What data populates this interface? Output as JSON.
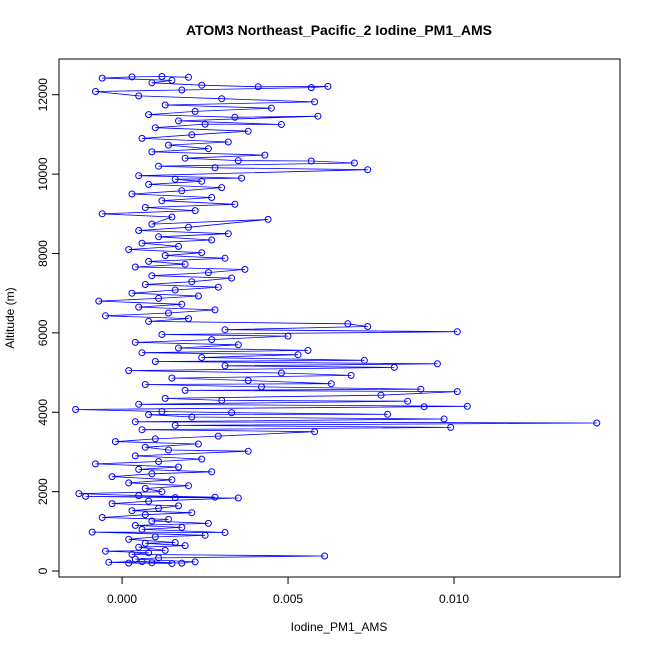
{
  "chart_data": {
    "type": "scatter",
    "title": "ATOM3 Northeast_Pacific_2 Iodine_PM1_AMS",
    "xlabel": "Iodine_PM1_AMS",
    "ylabel": "Altitude (m)",
    "xlim": [
      -0.0019,
      0.015
    ],
    "ylim": [
      -150,
      12900
    ],
    "xticks": [
      {
        "value": 0.0,
        "label": "0.000"
      },
      {
        "value": 0.005,
        "label": "0.005"
      },
      {
        "value": 0.01,
        "label": "0.010"
      }
    ],
    "yticks": [
      {
        "value": 0,
        "label": "0"
      },
      {
        "value": 2000,
        "label": "2000"
      },
      {
        "value": 4000,
        "label": "4000"
      },
      {
        "value": 6000,
        "label": "6000"
      },
      {
        "value": 8000,
        "label": "8000"
      },
      {
        "value": 10000,
        "label": "10000"
      },
      {
        "value": 12000,
        "label": "12000"
      }
    ],
    "series": [
      {
        "color": "#0000ff",
        "style": "points-and-lines",
        "marker": "open-circle",
        "points": [
          [
            0.0002,
            200
          ],
          [
            0.0009,
            210
          ],
          [
            0.0015,
            190
          ],
          [
            -0.0004,
            220
          ],
          [
            0.0006,
            240
          ],
          [
            0.0018,
            200
          ],
          [
            0.0022,
            230
          ],
          [
            0.0004,
            300
          ],
          [
            0.0011,
            330
          ],
          [
            0.0061,
            380
          ],
          [
            0.0003,
            420
          ],
          [
            0.0008,
            460
          ],
          [
            -0.0005,
            500
          ],
          [
            0.0013,
            520
          ],
          [
            0.0005,
            600
          ],
          [
            0.0019,
            640
          ],
          [
            0.0007,
            700
          ],
          [
            0.0016,
            720
          ],
          [
            0.0002,
            800
          ],
          [
            0.001,
            860
          ],
          [
            0.0025,
            900
          ],
          [
            -0.0009,
            980
          ],
          [
            0.0031,
            970
          ],
          [
            0.0006,
            1050
          ],
          [
            0.0018,
            1100
          ],
          [
            0.0004,
            1150
          ],
          [
            0.0026,
            1200
          ],
          [
            0.0009,
            1260
          ],
          [
            0.0014,
            1300
          ],
          [
            -0.0006,
            1350
          ],
          [
            0.0007,
            1420
          ],
          [
            0.0021,
            1470
          ],
          [
            0.0003,
            1520
          ],
          [
            0.0011,
            1580
          ],
          [
            0.0017,
            1640
          ],
          [
            -0.0003,
            1700
          ],
          [
            0.0008,
            1760
          ],
          [
            0.0035,
            1840
          ],
          [
            0.0016,
            1850
          ],
          [
            -0.0011,
            1880
          ],
          [
            0.0028,
            1860
          ],
          [
            0.0005,
            1900
          ],
          [
            -0.0013,
            1950
          ],
          [
            0.0012,
            2000
          ],
          [
            0.0007,
            2080
          ],
          [
            0.002,
            2150
          ],
          [
            0.0002,
            2220
          ],
          [
            0.0015,
            2300
          ],
          [
            -0.0003,
            2380
          ],
          [
            0.0009,
            2450
          ],
          [
            0.0027,
            2500
          ],
          [
            0.0005,
            2560
          ],
          [
            0.0017,
            2620
          ],
          [
            -0.0008,
            2700
          ],
          [
            0.0011,
            2760
          ],
          [
            0.0024,
            2820
          ],
          [
            0.0004,
            2900
          ],
          [
            0.0038,
            3020
          ],
          [
            0.0014,
            3050
          ],
          [
            0.0007,
            3120
          ],
          [
            0.0023,
            3200
          ],
          [
            -0.0002,
            3260
          ],
          [
            0.001,
            3330
          ],
          [
            0.0029,
            3400
          ],
          [
            0.0058,
            3510
          ],
          [
            0.0006,
            3560
          ],
          [
            0.0099,
            3620
          ],
          [
            0.0016,
            3670
          ],
          [
            0.0143,
            3730
          ],
          [
            0.0004,
            3760
          ],
          [
            0.0097,
            3830
          ],
          [
            0.0021,
            3880
          ],
          [
            0.0008,
            3940
          ],
          [
            0.008,
            3950
          ],
          [
            0.0033,
            3990
          ],
          [
            0.0012,
            4020
          ],
          [
            -0.0014,
            4070
          ],
          [
            0.0091,
            4140
          ],
          [
            0.0104,
            4150
          ],
          [
            0.0005,
            4200
          ],
          [
            0.0086,
            4280
          ],
          [
            0.003,
            4300
          ],
          [
            0.0013,
            4350
          ],
          [
            0.0078,
            4430
          ],
          [
            0.0101,
            4520
          ],
          [
            0.0019,
            4550
          ],
          [
            0.009,
            4580
          ],
          [
            0.0042,
            4640
          ],
          [
            0.0007,
            4700
          ],
          [
            0.0063,
            4720
          ],
          [
            0.0038,
            4800
          ],
          [
            0.0015,
            4860
          ],
          [
            0.0069,
            4930
          ],
          [
            0.0048,
            4990
          ],
          [
            0.0002,
            5050
          ],
          [
            0.0082,
            5130
          ],
          [
            0.0031,
            5170
          ],
          [
            0.0095,
            5220
          ],
          [
            0.001,
            5280
          ],
          [
            0.0073,
            5310
          ],
          [
            0.0024,
            5380
          ],
          [
            0.0053,
            5450
          ],
          [
            0.0006,
            5500
          ],
          [
            0.0056,
            5560
          ],
          [
            0.0017,
            5620
          ],
          [
            0.0035,
            5700
          ],
          [
            0.0004,
            5760
          ],
          [
            0.0027,
            5830
          ],
          [
            0.005,
            5920
          ],
          [
            0.0012,
            5960
          ],
          [
            0.0101,
            6030
          ],
          [
            0.0031,
            6080
          ],
          [
            0.0074,
            6160
          ],
          [
            0.0068,
            6230
          ],
          [
            0.0008,
            6290
          ],
          [
            0.002,
            6360
          ],
          [
            -0.0005,
            6430
          ],
          [
            0.0014,
            6500
          ],
          [
            0.0028,
            6580
          ],
          [
            0.0005,
            6650
          ],
          [
            0.0018,
            6720
          ],
          [
            -0.0007,
            6800
          ],
          [
            0.0011,
            6870
          ],
          [
            0.0023,
            6930
          ],
          [
            0.0003,
            7000
          ],
          [
            0.0016,
            7080
          ],
          [
            0.0029,
            7150
          ],
          [
            0.0007,
            7220
          ],
          [
            0.0021,
            7290
          ],
          [
            0.0033,
            7380
          ],
          [
            0.0009,
            7440
          ],
          [
            0.0026,
            7520
          ],
          [
            0.0037,
            7600
          ],
          [
            0.0004,
            7660
          ],
          [
            0.0019,
            7730
          ],
          [
            0.0008,
            7800
          ],
          [
            0.0031,
            7880
          ],
          [
            0.0013,
            7950
          ],
          [
            0.0024,
            8020
          ],
          [
            0.0002,
            8100
          ],
          [
            0.0017,
            8180
          ],
          [
            0.0006,
            8260
          ],
          [
            0.0027,
            8340
          ],
          [
            0.0011,
            8420
          ],
          [
            0.0032,
            8500
          ],
          [
            0.0005,
            8580
          ],
          [
            0.002,
            8660
          ],
          [
            0.0044,
            8860
          ],
          [
            0.0009,
            8740
          ],
          [
            0.0015,
            8920
          ],
          [
            -0.0006,
            9000
          ],
          [
            0.0022,
            9080
          ],
          [
            0.0007,
            9160
          ],
          [
            0.0034,
            9240
          ],
          [
            0.0012,
            9330
          ],
          [
            0.0027,
            9410
          ],
          [
            0.0003,
            9500
          ],
          [
            0.0018,
            9580
          ],
          [
            0.003,
            9660
          ],
          [
            0.0008,
            9740
          ],
          [
            0.0024,
            9820
          ],
          [
            0.0016,
            9870
          ],
          [
            0.0036,
            9900
          ],
          [
            0.0005,
            9960
          ],
          [
            0.0074,
            10110
          ],
          [
            0.0028,
            10160
          ],
          [
            0.0011,
            10200
          ],
          [
            0.007,
            10280
          ],
          [
            0.0057,
            10330
          ],
          [
            0.0035,
            10340
          ],
          [
            0.0019,
            10400
          ],
          [
            0.0043,
            10480
          ],
          [
            0.0009,
            10560
          ],
          [
            0.0026,
            10640
          ],
          [
            0.0014,
            10730
          ],
          [
            0.0032,
            10810
          ],
          [
            0.0006,
            10900
          ],
          [
            0.0021,
            10990
          ],
          [
            0.0038,
            11080
          ],
          [
            0.001,
            11170
          ],
          [
            0.0025,
            11260
          ],
          [
            0.0048,
            11250
          ],
          [
            0.0017,
            11340
          ],
          [
            0.0059,
            11460
          ],
          [
            0.0034,
            11430
          ],
          [
            0.0008,
            11500
          ],
          [
            0.0022,
            11580
          ],
          [
            0.0045,
            11660
          ],
          [
            0.0013,
            11740
          ],
          [
            0.0058,
            11820
          ],
          [
            0.003,
            11900
          ],
          [
            0.0005,
            11970
          ],
          [
            -0.0008,
            12080
          ],
          [
            0.0018,
            12120
          ],
          [
            0.0057,
            12180
          ],
          [
            0.0062,
            12210
          ],
          [
            0.0041,
            12200
          ],
          [
            0.0024,
            12240
          ],
          [
            0.0009,
            12300
          ],
          [
            0.0015,
            12360
          ],
          [
            -0.0006,
            12420
          ],
          [
            0.0003,
            12450
          ],
          [
            0.0012,
            12460
          ],
          [
            0.002,
            12440
          ]
        ]
      }
    ]
  }
}
